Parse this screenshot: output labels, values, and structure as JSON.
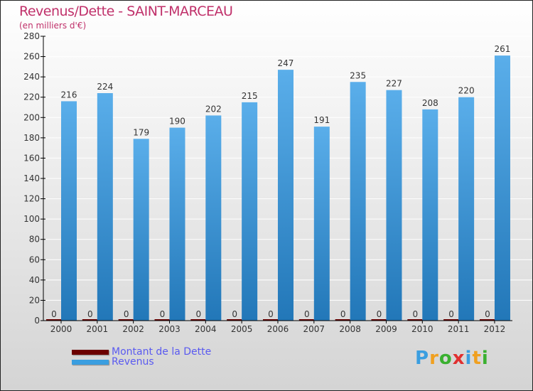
{
  "chart_data": {
    "type": "bar",
    "title": "Revenus/Dette - SAINT-MARCEAU",
    "subtitle": "(en milliers d'€)",
    "categories": [
      "2000",
      "2001",
      "2002",
      "2003",
      "2004",
      "2005",
      "2006",
      "2007",
      "2008",
      "2009",
      "2010",
      "2011",
      "2012"
    ],
    "series": [
      {
        "name": "Montant de la Dette",
        "color": "#6b0000",
        "values": [
          0,
          0,
          0,
          0,
          0,
          0,
          0,
          0,
          0,
          0,
          0,
          0,
          0
        ]
      },
      {
        "name": "Revenus",
        "color": "#3a9ee0",
        "values": [
          216,
          224,
          179,
          190,
          202,
          215,
          247,
          191,
          235,
          227,
          208,
          220,
          261
        ]
      }
    ],
    "ylim": [
      0,
      280
    ],
    "yticks": [
      0,
      20,
      40,
      60,
      80,
      100,
      120,
      140,
      160,
      180,
      200,
      220,
      240,
      260,
      280
    ],
    "legend": "bottom-left"
  },
  "logo": "Proxiti"
}
